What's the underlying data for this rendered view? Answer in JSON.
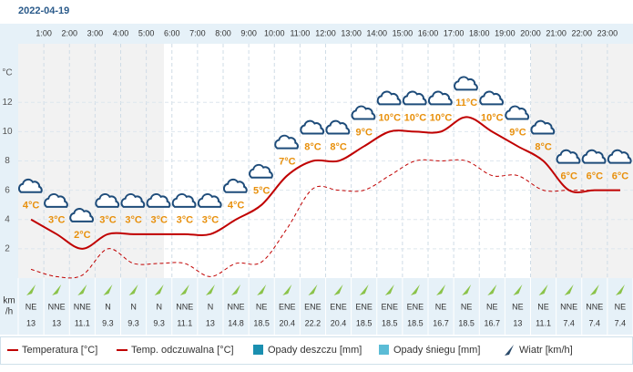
{
  "date": "2022-04-19",
  "chart_data": {
    "type": "line",
    "y_unit": "°C",
    "hour_labels": [
      "1:00",
      "2:00",
      "3:00",
      "4:00",
      "5:00",
      "6:00",
      "7:00",
      "8:00",
      "9:00",
      "10:00",
      "11:00",
      "12:00",
      "13:00",
      "14:00",
      "15:00",
      "16:00",
      "17:00",
      "18:00",
      "19:00",
      "20:00",
      "21:00",
      "22:00",
      "23:00"
    ],
    "categories": [
      null,
      null,
      null,
      null,
      null,
      null,
      null,
      null,
      null,
      null,
      null,
      null,
      null,
      null,
      null,
      null,
      null,
      null,
      null,
      null,
      null,
      null,
      null,
      null
    ],
    "ylim": [
      0,
      16
    ],
    "yticks": [
      2,
      4,
      6,
      8,
      10,
      12
    ],
    "series": [
      {
        "name": "Temperatura [°C]",
        "color": "#c00000",
        "values": [
          4,
          3,
          2,
          3,
          3,
          3,
          3,
          3,
          4,
          5,
          7,
          8,
          8,
          9,
          10,
          10,
          10,
          11,
          10,
          9,
          8,
          6,
          6,
          6
        ],
        "value_labels": [
          "4°C",
          "3°C",
          "2°C",
          "3°C",
          "3°C",
          "3°C",
          "3°C",
          "3°C",
          "4°C",
          "5°C",
          "7°C",
          "8°C",
          "8°C",
          "9°C",
          "10°C",
          "10°C",
          "10°C",
          "11°C",
          "10°C",
          "9°C",
          "8°C",
          "6°C",
          "6°C",
          "6°C"
        ]
      },
      {
        "name": "Temp. odczuwalna [°C]",
        "color": "#c00000",
        "dashed": true,
        "values": [
          0.6,
          0.1,
          0.2,
          2,
          1,
          1,
          1,
          0.1,
          1,
          1.1,
          3.4,
          6.1,
          6,
          6,
          7,
          8,
          8,
          8,
          7,
          7,
          6,
          6,
          6,
          6
        ]
      }
    ],
    "legend_extra": [
      {
        "name": "Opady deszczu [mm]",
        "color": "#1a8fb0"
      },
      {
        "name": "Opady śniegu [mm]",
        "color": "#5bbcd6"
      },
      {
        "name": "Wiatr [km/h]",
        "color": "#2a4a6a"
      }
    ],
    "wind_unit_lines": [
      "km",
      "/h"
    ],
    "wind_direction": [
      "NE",
      "NNE",
      "NNE",
      "N",
      "N",
      "N",
      "NNE",
      "N",
      "NNE",
      "NE",
      "ENE",
      "ENE",
      "ENE",
      "ENE",
      "ENE",
      "ENE",
      "NE",
      "NE",
      "NE",
      "NE",
      "NE",
      "NNE",
      "NNE",
      "NE"
    ],
    "wind_speed": [
      13,
      13,
      11.1,
      9.3,
      9.3,
      9.3,
      11.1,
      13,
      14.8,
      18.5,
      20.4,
      22.2,
      20.4,
      18.5,
      18.5,
      18.5,
      16.7,
      18.5,
      16.7,
      13,
      11.1,
      7.4,
      7.4,
      7.4
    ]
  }
}
